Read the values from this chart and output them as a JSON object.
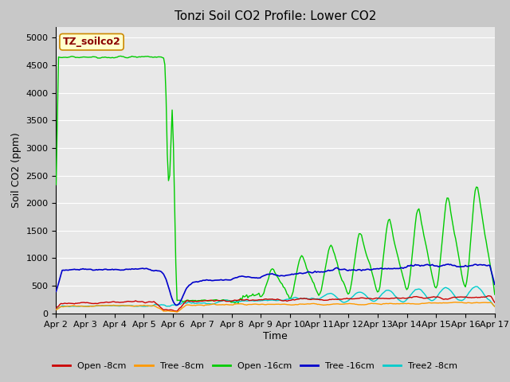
{
  "title": "Tonzi Soil CO2 Profile: Lower CO2",
  "ylabel": "Soil CO2 (ppm)",
  "xlabel": "Time",
  "watermark": "TZ_soilco2",
  "ylim": [
    0,
    5200
  ],
  "yticks": [
    0,
    500,
    1000,
    1500,
    2000,
    2500,
    3000,
    3500,
    4000,
    4500,
    5000
  ],
  "xtick_labels": [
    "Apr 2",
    "Apr 3",
    "Apr 4",
    "Apr 5",
    "Apr 6",
    "Apr 7",
    "Apr 8",
    "Apr 9",
    "Apr 10",
    "Apr 11",
    "Apr 12",
    "Apr 13",
    "Apr 14",
    "Apr 15",
    "Apr 16",
    "Apr 17"
  ],
  "series_colors": {
    "open8": "#cc0000",
    "tree8": "#ff9900",
    "open16": "#00cc00",
    "tree16": "#0000cc",
    "tree2_8": "#00cccc"
  },
  "legend_labels": [
    "Open -8cm",
    "Tree -8cm",
    "Open -16cm",
    "Tree -16cm",
    "Tree2 -8cm"
  ],
  "bg_color": "#e8e8e8",
  "title_fontsize": 11,
  "axis_label_fontsize": 9,
  "tick_fontsize": 8
}
